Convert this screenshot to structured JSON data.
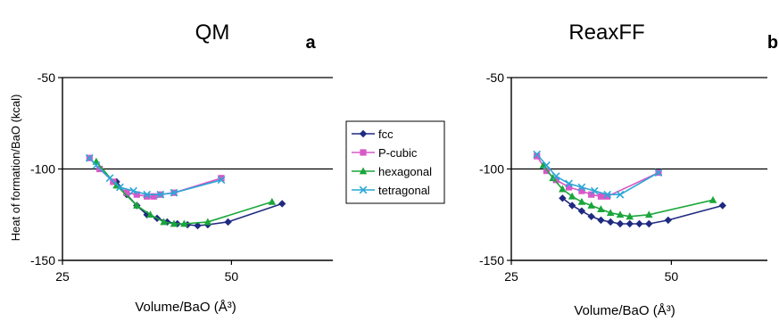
{
  "colors": {
    "fcc": "#1f2a80",
    "P-cubic": "#d958c8",
    "hexagonal": "#1aa63a",
    "tetragonal": "#2aa7d6",
    "gridline": "#000000",
    "axis": "#000000"
  },
  "legend": {
    "placement": "center-between-panels",
    "entries": [
      "fcc",
      "P-cubic",
      "hexagonal",
      "tetragonal"
    ],
    "markers": [
      "diamond",
      "square",
      "triangle",
      "x"
    ]
  },
  "chart_data": [
    {
      "type": "line",
      "title": "QM",
      "panel_label": "a",
      "xlabel": "Volume/BaO (Å³)",
      "ylabel": "Heat of formation/BaO (kcal)",
      "xlim": [
        25,
        65
      ],
      "ylim": [
        -150,
        -50
      ],
      "xticks": [
        25,
        50
      ],
      "yticks": [
        -150,
        -100,
        -50
      ],
      "grid": {
        "horizontal": [
          -100,
          -50
        ]
      },
      "series": [
        {
          "name": "fcc",
          "marker": "diamond",
          "x": [
            33.0,
            34.5,
            36.0,
            37.5,
            39.0,
            40.5,
            42.0,
            43.5,
            45.0,
            46.5,
            49.5,
            57.5
          ],
          "y": [
            -107,
            -114,
            -120,
            -125,
            -127,
            -129,
            -130,
            -130.5,
            -131,
            -130.5,
            -129,
            -119
          ]
        },
        {
          "name": "P-cubic",
          "marker": "square",
          "x": [
            29.0,
            30.5,
            32.5,
            34.5,
            36.0,
            37.5,
            38.5,
            39.5,
            41.5,
            48.5
          ],
          "y": [
            -94,
            -100,
            -107,
            -113,
            -114,
            -115,
            -115,
            -114,
            -113,
            -105
          ]
        },
        {
          "name": "hexagonal",
          "marker": "triangle",
          "x": [
            30.0,
            33.0,
            36.0,
            38.0,
            40.0,
            41.5,
            43.0,
            46.5,
            56.0
          ],
          "y": [
            -96,
            -109,
            -120,
            -125,
            -129,
            -130,
            -130,
            -129,
            -118
          ]
        },
        {
          "name": "tetragonal",
          "marker": "x",
          "x": [
            29.0,
            30.0,
            32.0,
            33.5,
            35.5,
            37.5,
            39.5,
            41.5,
            48.5
          ],
          "y": [
            -94,
            -98,
            -105,
            -110,
            -112,
            -114,
            -114,
            -113,
            -106
          ]
        }
      ]
    },
    {
      "type": "line",
      "title": "ReaxFF",
      "panel_label": "b",
      "xlabel": "Volume/BaO (Å³)",
      "ylabel": "",
      "xlim": [
        25,
        65
      ],
      "ylim": [
        -150,
        -50
      ],
      "xticks": [
        25,
        50
      ],
      "yticks": [
        -150,
        -100,
        -50
      ],
      "grid": {
        "horizontal": [
          -100,
          -50
        ]
      },
      "series": [
        {
          "name": "fcc",
          "marker": "diamond",
          "x": [
            33.0,
            34.5,
            36.0,
            37.5,
            39.0,
            40.5,
            42.0,
            43.5,
            45.0,
            46.5,
            49.5,
            58.0
          ],
          "y": [
            -116,
            -120,
            -123,
            -126,
            -128,
            -129,
            -130,
            -130,
            -130,
            -130,
            -128,
            -120
          ]
        },
        {
          "name": "P-cubic",
          "marker": "square",
          "x": [
            29.0,
            30.5,
            32.0,
            34.0,
            36.0,
            37.5,
            39.0,
            40.0,
            48.0
          ],
          "y": [
            -93,
            -101,
            -106,
            -110,
            -112,
            -114,
            -115,
            -115,
            -102
          ]
        },
        {
          "name": "hexagonal",
          "marker": "triangle",
          "x": [
            30.0,
            31.5,
            33.0,
            34.5,
            36.0,
            37.5,
            39.0,
            40.5,
            42.0,
            43.5,
            46.5,
            56.5
          ],
          "y": [
            -98,
            -105,
            -111,
            -115,
            -118,
            -120,
            -122,
            -124,
            -125,
            -126,
            -125,
            -117
          ]
        },
        {
          "name": "tetragonal",
          "marker": "x",
          "x": [
            29.0,
            30.5,
            32.0,
            34.0,
            36.0,
            38.0,
            40.0,
            42.0,
            48.0
          ],
          "y": [
            -92,
            -98,
            -104,
            -108,
            -110,
            -112,
            -114,
            -114,
            -102
          ]
        }
      ]
    }
  ]
}
